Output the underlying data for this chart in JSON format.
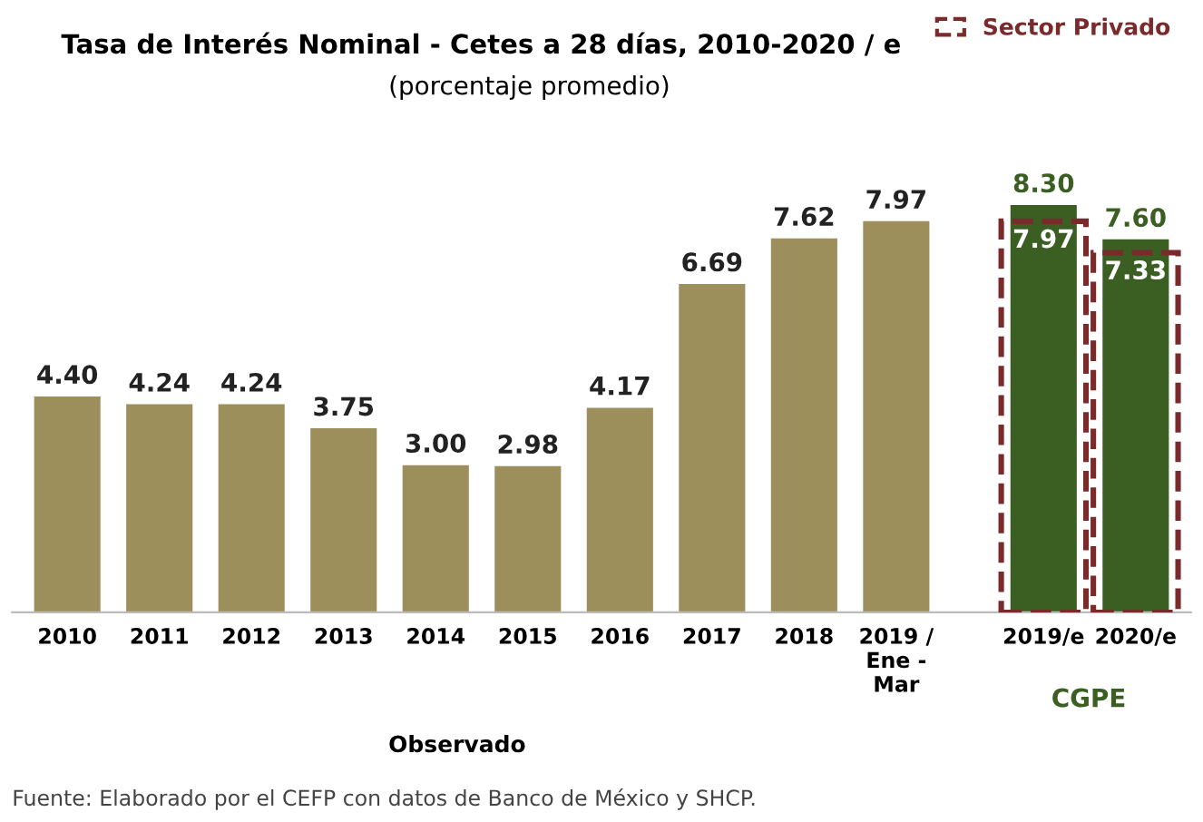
{
  "chart_data": {
    "type": "bar",
    "title": "Tasa de Interés Nominal - Cetes a 28 días, 2010-2020 / e",
    "subtitle": "(porcentaje promedio)",
    "categories": [
      "2010",
      "2011",
      "2012",
      "2013",
      "2014",
      "2015",
      "2016",
      "2017",
      "2018",
      "2019 /\nEne -\nMar",
      "2019/e",
      "2020/e"
    ],
    "series": [
      {
        "color": "#9c8f5c",
        "values": [
          4.4,
          4.24,
          4.24,
          3.75,
          3.0,
          2.98,
          4.17,
          6.69,
          7.62,
          7.97,
          null,
          null
        ],
        "value_labels": [
          "4.40",
          "4.24",
          "4.24",
          "3.75",
          "3.00",
          "2.98",
          "4.17",
          "6.69",
          "7.62",
          "7.97",
          null,
          null
        ]
      },
      {
        "color": "#3b5e23",
        "values": [
          null,
          null,
          null,
          null,
          null,
          null,
          null,
          null,
          null,
          null,
          8.3,
          7.6
        ],
        "value_labels": [
          null,
          null,
          null,
          null,
          null,
          null,
          null,
          null,
          null,
          null,
          "8.30",
          "7.60"
        ]
      },
      {
        "name": "Sector Privado",
        "color": "#7a2a2a",
        "line_style": "dashed",
        "values": [
          null,
          null,
          null,
          null,
          null,
          null,
          null,
          null,
          null,
          null,
          7.97,
          7.33
        ],
        "value_labels": [
          null,
          null,
          null,
          null,
          null,
          null,
          null,
          null,
          null,
          null,
          "7.97",
          "7.33"
        ]
      }
    ],
    "legend": "top right",
    "annotations": [
      "Observado",
      "CGPE",
      "Fuente: Elaborado por el CEFP con datos de Banco de México y SHCP."
    ]
  }
}
